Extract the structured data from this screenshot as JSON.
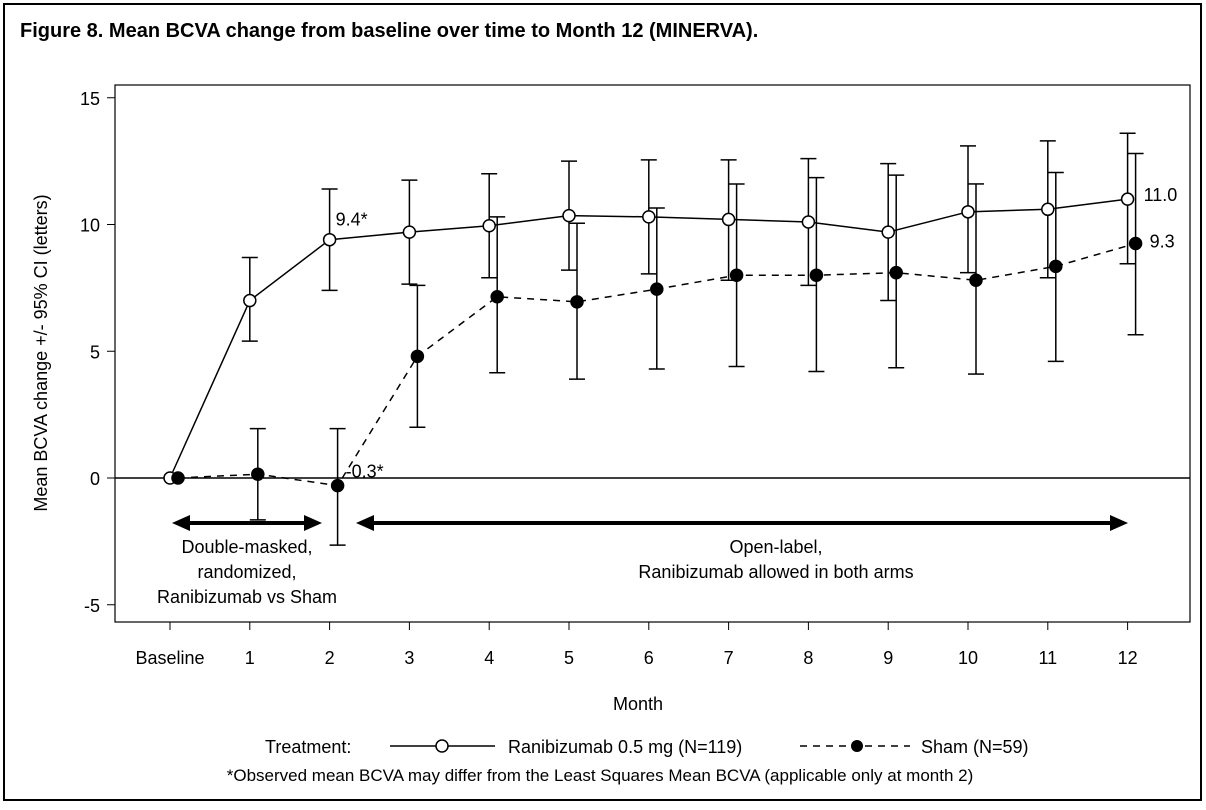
{
  "chart_data": {
    "type": "line",
    "title": "Figure 8. Mean BCVA change from baseline over time to Month 12 (MINERVA).",
    "xlabel": "Month",
    "ylabel": "Mean BCVA change +/- 95% CI (letters)",
    "ylim": [
      -6.2,
      15.5
    ],
    "yticks": [
      15,
      10,
      5,
      0,
      -5
    ],
    "categories": [
      "Baseline",
      "1",
      "2",
      "3",
      "4",
      "5",
      "6",
      "7",
      "8",
      "9",
      "10",
      "11",
      "12"
    ],
    "series": [
      {
        "name": "Ranibizumab 0.5 mg (N=119)",
        "marker": "open-circle",
        "line": "solid",
        "values": [
          0,
          7.0,
          9.4,
          9.7,
          9.95,
          10.35,
          10.3,
          10.2,
          10.1,
          9.7,
          10.5,
          10.6,
          11.0
        ],
        "ci_upper": [
          null,
          8.7,
          11.4,
          11.75,
          12.0,
          12.5,
          12.55,
          12.55,
          12.6,
          12.4,
          13.1,
          13.3,
          13.6
        ],
        "ci_lower": [
          null,
          5.4,
          7.4,
          7.65,
          7.9,
          8.2,
          8.05,
          7.8,
          7.6,
          7.0,
          8.1,
          7.9,
          8.45
        ]
      },
      {
        "name": "Sham (N=59)",
        "marker": "filled-circle",
        "line": "dashed",
        "values": [
          0,
          0.15,
          -0.3,
          4.8,
          7.15,
          6.95,
          7.45,
          8.0,
          8.0,
          8.1,
          7.8,
          8.35,
          9.25
        ],
        "ci_upper": [
          null,
          1.95,
          1.95,
          7.6,
          10.3,
          10.05,
          10.65,
          11.6,
          11.85,
          11.95,
          11.6,
          12.05,
          12.8
        ],
        "ci_lower": [
          null,
          -1.65,
          -2.65,
          2.0,
          4.15,
          3.9,
          4.3,
          4.4,
          4.2,
          4.35,
          4.1,
          4.6,
          5.65
        ]
      }
    ],
    "data_labels": [
      {
        "series": 0,
        "index": 2,
        "text": "9.4*"
      },
      {
        "series": 1,
        "index": 2,
        "text": "-0.3*"
      },
      {
        "series": 0,
        "index": 12,
        "text": "11.0"
      },
      {
        "series": 1,
        "index": 12,
        "text": "9.3"
      }
    ],
    "annotations": {
      "phase1": [
        "Double-masked,",
        "randomized,",
        "Ranibizumab vs Sham"
      ],
      "phase2": [
        "Open-label,",
        "Ranibizumab allowed in both arms"
      ]
    },
    "legend": {
      "title": "Treatment:",
      "placement": "bottom"
    },
    "footnote": "*Observed mean BCVA may differ from the Least Squares Mean BCVA (applicable only at month 2)",
    "grid": false
  }
}
